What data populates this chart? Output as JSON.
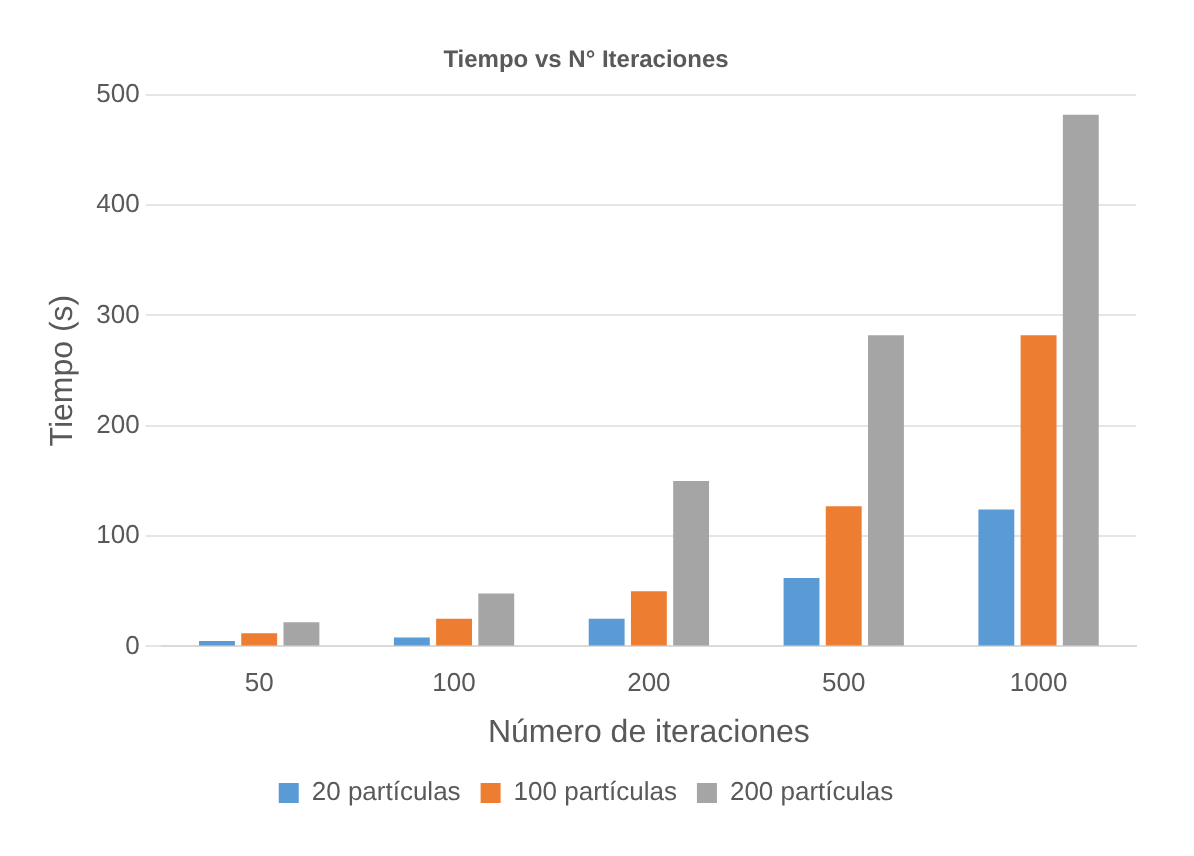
{
  "chart_data": {
    "type": "bar",
    "title": "Tiempo vs N° Iteraciones",
    "xlabel": "Número de iteraciones",
    "ylabel": "Tiempo (s)",
    "categories": [
      "50",
      "100",
      "200",
      "500",
      "1000"
    ],
    "series": [
      {
        "name": "20 partículas",
        "color": "#5b9bd5",
        "values": [
          5,
          8,
          25,
          62,
          124
        ]
      },
      {
        "name": "100 partículas",
        "color": "#ed7d31",
        "values": [
          12,
          25,
          50,
          127,
          282
        ]
      },
      {
        "name": "200 partículas",
        "color": "#a5a5a5",
        "values": [
          22,
          48,
          150,
          282,
          482
        ]
      }
    ],
    "ylim": [
      0,
      500
    ],
    "yticks": [
      0,
      100,
      200,
      300,
      400,
      500
    ],
    "grid": "y",
    "legend": "bottom"
  }
}
